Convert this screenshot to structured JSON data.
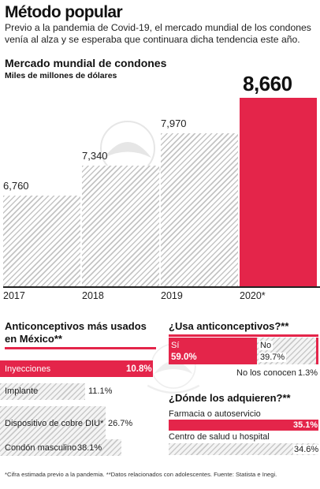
{
  "title": "Método popular",
  "subtitle": "Previo a la pandemia de Covid-19, el mercado mundial de los condones venía al alza y se esperaba que continuara dicha tendencia este año.",
  "colors": {
    "accent": "#e4254a",
    "hatch": "#c4c4c4",
    "text": "#111111"
  },
  "chart_data": [
    {
      "type": "bar",
      "title": "Mercado mundial de condones",
      "ylabel": "Miles de millones de dólares",
      "categories": [
        "2017",
        "2018",
        "2019",
        "2020*"
      ],
      "values": [
        6760,
        7340,
        7970,
        8660
      ],
      "value_labels": [
        "6,760",
        "7,340",
        "7,970",
        "8,660"
      ],
      "highlight_index": 3,
      "ylim": [
        5000,
        8660
      ],
      "grid": false
    },
    {
      "type": "bar",
      "orientation": "horizontal",
      "title": "Anticonceptivos más usados en México**",
      "categories": [
        "Inyecciones",
        "Implante",
        "Dispositivo de cobre DIU*",
        "Condón masculino"
      ],
      "values": [
        10.8,
        11.1,
        26.7,
        38.1
      ],
      "value_labels": [
        "10.8%",
        "11.1%",
        "26.7%",
        "38.1%"
      ],
      "highlight_index": 0
    },
    {
      "type": "bar",
      "orientation": "horizontal",
      "stacked": true,
      "title": "¿Usa anticonceptivos?**",
      "categories": [
        "Sí",
        "No",
        "No los conocen"
      ],
      "values": [
        59.0,
        39.7,
        1.3
      ],
      "value_labels": [
        "59.0%",
        "39.7%",
        "1.3%"
      ],
      "highlight_index": 0
    },
    {
      "type": "bar",
      "orientation": "horizontal",
      "title": "¿Dónde los adquieren?**",
      "categories": [
        "Farmacia o autoservicio",
        "Centro de salud u hospital"
      ],
      "values": [
        35.1,
        34.6
      ],
      "value_labels": [
        "35.1%",
        "34.6%"
      ],
      "highlight_index": 0
    }
  ],
  "footnote": "*Cifra estimada previo a la pandemia. **Datos relacionados con adolescentes. Fuente: Statista e Inegi."
}
